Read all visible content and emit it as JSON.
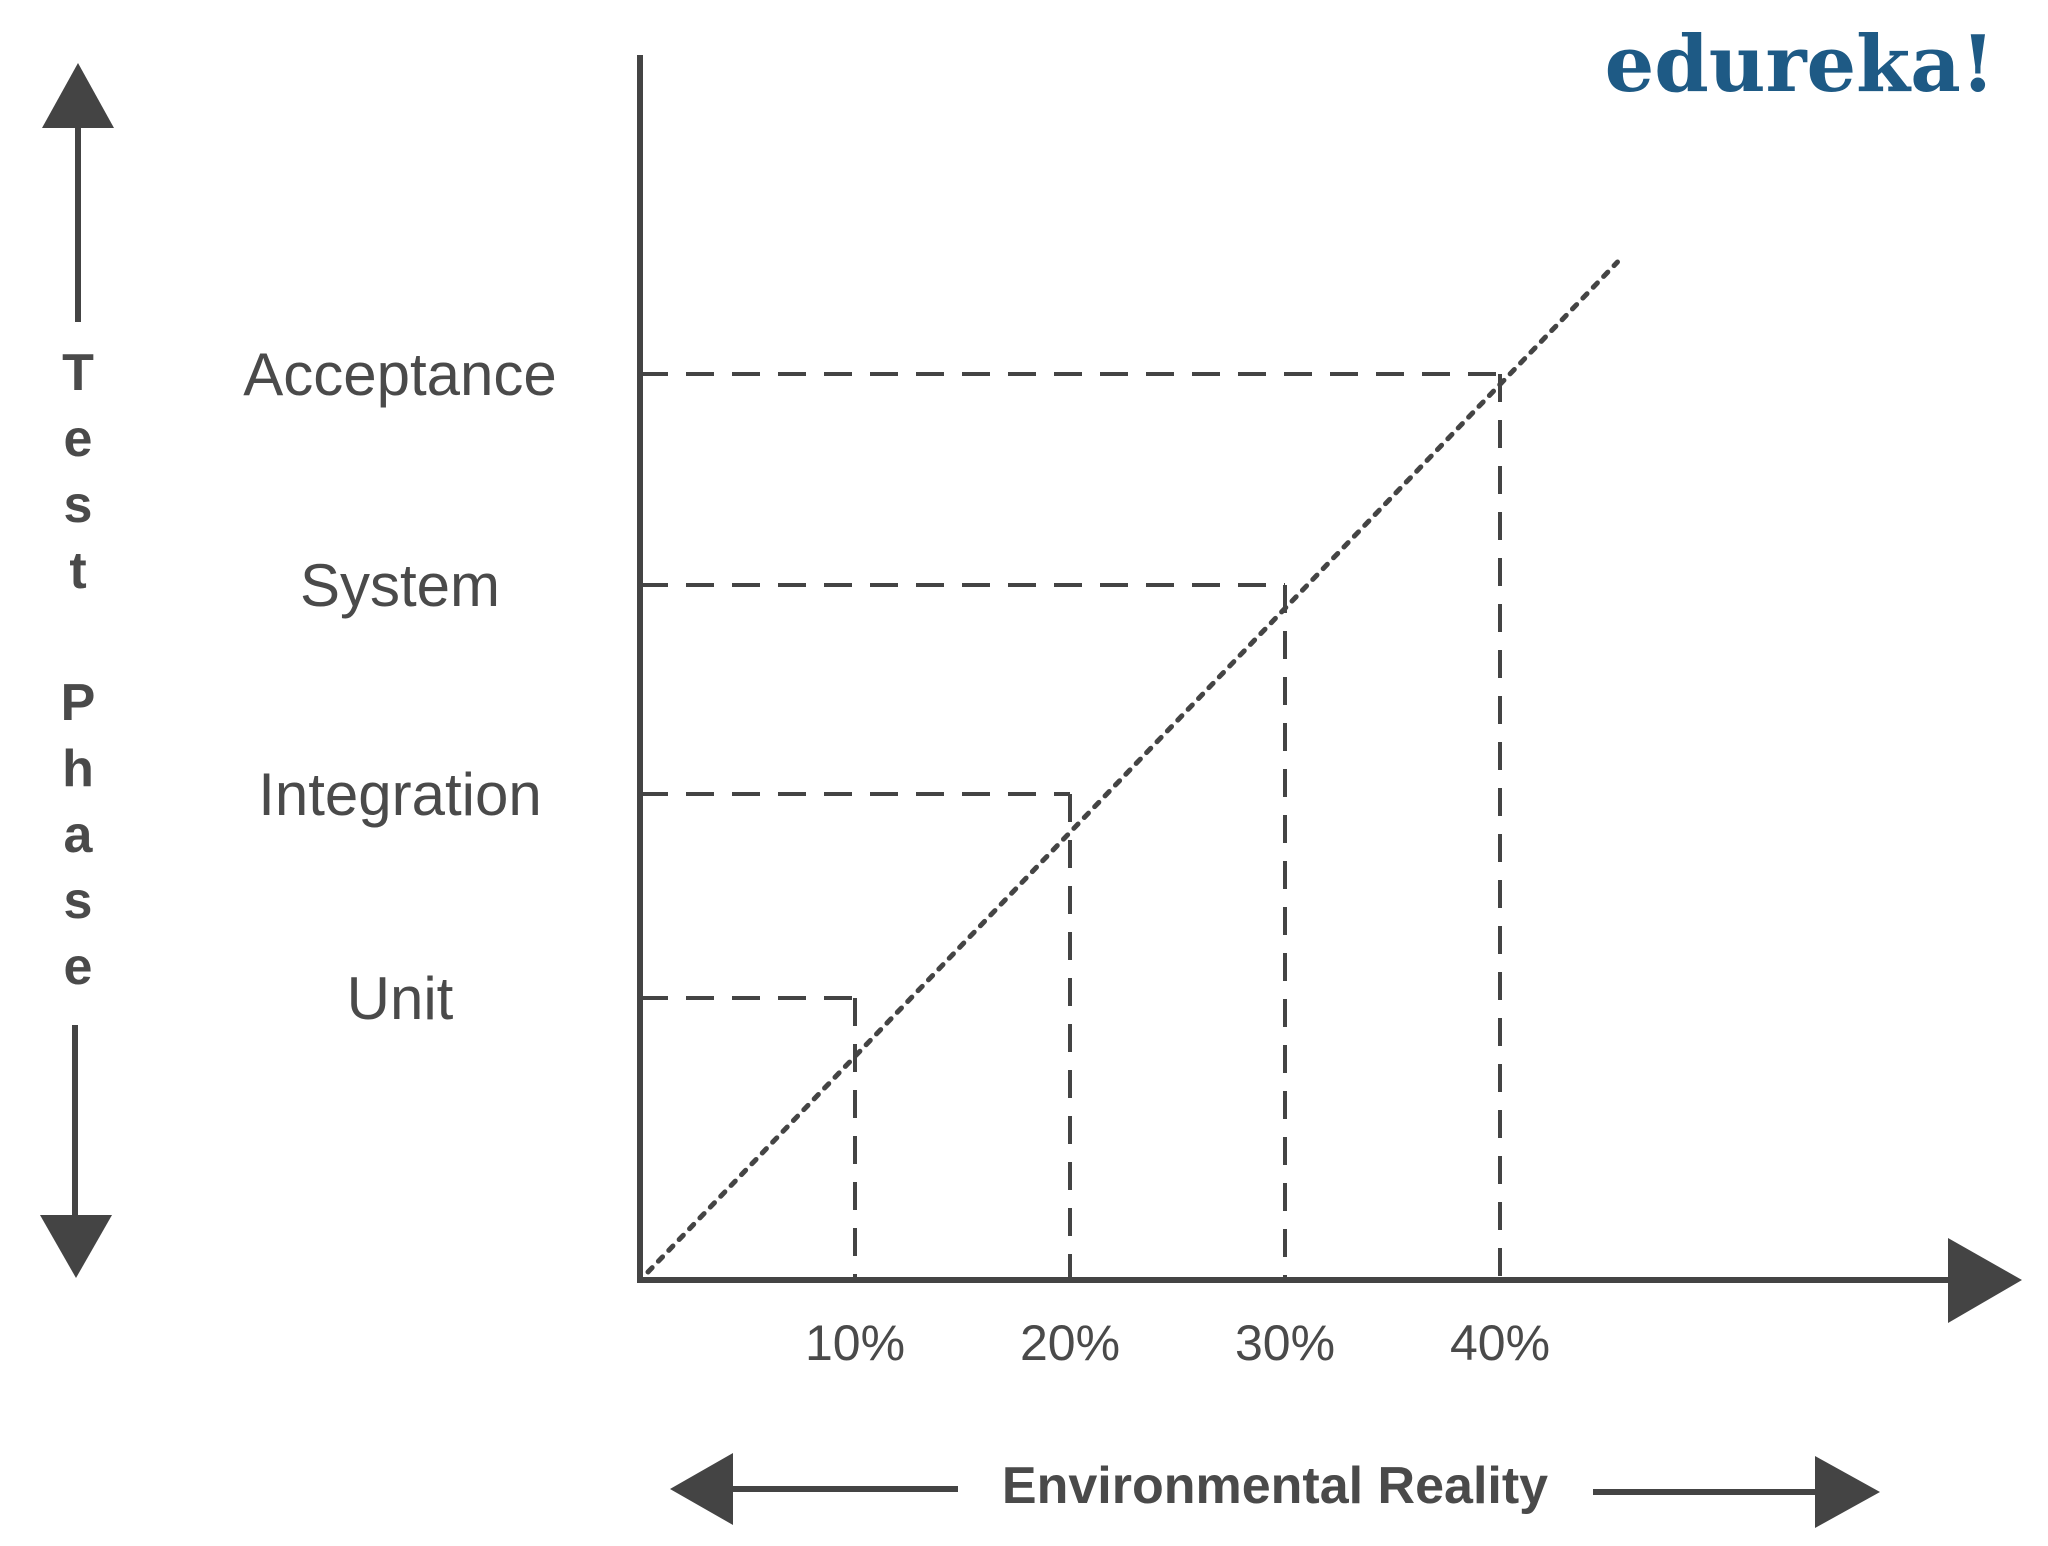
{
  "brand": {
    "logo_text": "edureka!",
    "color": "#1e5a85"
  },
  "colors": {
    "axis": "#444444",
    "guide": "#444444",
    "text": "#4a4a4a"
  },
  "chart_data": {
    "type": "line",
    "title": "",
    "ylabel": "Test Phase",
    "xlabel": "Environmental Reality",
    "x_tick_labels": [
      "10%",
      "20%",
      "30%",
      "40%"
    ],
    "categories": [
      "Unit",
      "Integration",
      "System",
      "Acceptance"
    ],
    "points": [
      {
        "phase": "Unit",
        "environment_pct": 10
      },
      {
        "phase": "Integration",
        "environment_pct": 20
      },
      {
        "phase": "System",
        "environment_pct": 30
      },
      {
        "phase": "Acceptance",
        "environment_pct": 40
      }
    ],
    "trend_line": {
      "style": "dotted",
      "from_pct": 0,
      "to_pct": 45
    },
    "guide_lines": "dashed",
    "grid": false,
    "legend": "none"
  }
}
